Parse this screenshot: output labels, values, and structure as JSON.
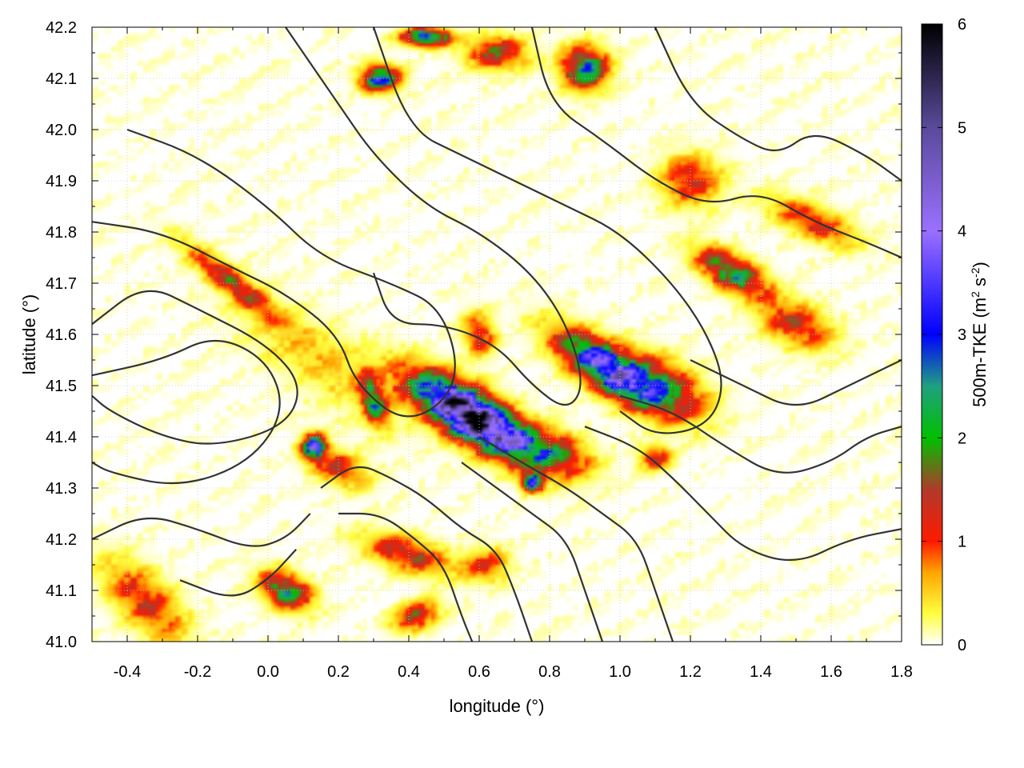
{
  "chart_data": {
    "type": "heatmap",
    "title": "",
    "xlabel": "longitude (°)",
    "ylabel": "latitude (°)",
    "xlim": [
      -0.5,
      1.8
    ],
    "ylim": [
      41.0,
      42.2
    ],
    "xticks": [
      -0.4,
      -0.2,
      0.0,
      0.2,
      0.4,
      0.6,
      0.8,
      1.0,
      1.2,
      1.4,
      1.6,
      1.8
    ],
    "xtick_labels": [
      "-0.4",
      "-0.2",
      "0.0",
      "0.2",
      "0.4",
      "0.6",
      "0.8",
      "1.0",
      "1.2",
      "1.4",
      "1.6",
      "1.8"
    ],
    "yticks": [
      41.0,
      41.1,
      41.2,
      41.3,
      41.4,
      41.5,
      41.6,
      41.7,
      41.8,
      41.9,
      42.0,
      42.1,
      42.2
    ],
    "ytick_labels": [
      "41.0",
      "41.1",
      "41.2",
      "41.3",
      "41.4",
      "41.5",
      "41.6",
      "41.7",
      "41.8",
      "41.9",
      "42.0",
      "42.1",
      "42.2"
    ],
    "grid": true,
    "colorbar": {
      "label_main": "500m-TKE (m",
      "label_sup1": "2",
      "label_mid": " s",
      "label_sup2": "-2",
      "label_end": ")",
      "range": [
        0,
        6
      ],
      "ticks": [
        0,
        1,
        2,
        3,
        4,
        5,
        6
      ],
      "tick_labels": [
        "0",
        "1",
        "2",
        "3",
        "4",
        "5",
        "6"
      ],
      "colorscale": [
        {
          "value": 0.0,
          "color": "#ffffff"
        },
        {
          "value": 0.3,
          "color": "#ffff40"
        },
        {
          "value": 0.7,
          "color": "#ffa500"
        },
        {
          "value": 1.0,
          "color": "#ff1a00"
        },
        {
          "value": 1.5,
          "color": "#b03a2a"
        },
        {
          "value": 2.0,
          "color": "#00c000"
        },
        {
          "value": 2.5,
          "color": "#20a080"
        },
        {
          "value": 3.0,
          "color": "#0000ff"
        },
        {
          "value": 4.0,
          "color": "#9a70ff"
        },
        {
          "value": 5.0,
          "color": "#5a4a9a"
        },
        {
          "value": 6.0,
          "color": "#000000"
        }
      ]
    },
    "tke_field": [
      {
        "lon": 0.58,
        "lat": 41.44,
        "peak": 6.0,
        "sx": 0.17,
        "sy": 0.055,
        "angle": -28
      },
      {
        "lon": 0.97,
        "lat": 41.53,
        "peak": 3.8,
        "sx": 0.15,
        "sy": 0.05,
        "angle": -30
      },
      {
        "lon": 1.12,
        "lat": 41.5,
        "peak": 1.8,
        "sx": 0.12,
        "sy": 0.06,
        "angle": -25
      },
      {
        "lon": 0.8,
        "lat": 41.37,
        "peak": 1.7,
        "sx": 0.11,
        "sy": 0.05,
        "angle": -15
      },
      {
        "lon": 0.75,
        "lat": 41.31,
        "peak": 4.2,
        "sx": 0.025,
        "sy": 0.02,
        "angle": 0
      },
      {
        "lon": 0.3,
        "lat": 41.47,
        "peak": 2.2,
        "sx": 0.03,
        "sy": 0.06,
        "angle": 20
      },
      {
        "lon": 0.13,
        "lat": 41.38,
        "peak": 3.2,
        "sx": 0.03,
        "sy": 0.03,
        "angle": 0
      },
      {
        "lon": 0.2,
        "lat": 41.34,
        "peak": 1.2,
        "sx": 0.08,
        "sy": 0.04,
        "angle": -20
      },
      {
        "lon": 1.32,
        "lat": 41.72,
        "peak": 2.3,
        "sx": 0.1,
        "sy": 0.04,
        "angle": -25
      },
      {
        "lon": 1.5,
        "lat": 41.62,
        "peak": 1.3,
        "sx": 0.1,
        "sy": 0.05,
        "angle": -20
      },
      {
        "lon": -0.1,
        "lat": 41.7,
        "peak": 1.5,
        "sx": 0.15,
        "sy": 0.03,
        "angle": -35
      },
      {
        "lon": 0.05,
        "lat": 41.1,
        "peak": 2.2,
        "sx": 0.07,
        "sy": 0.04,
        "angle": -20
      },
      {
        "lon": -0.35,
        "lat": 41.08,
        "peak": 1.2,
        "sx": 0.13,
        "sy": 0.06,
        "angle": -40
      },
      {
        "lon": 0.4,
        "lat": 41.17,
        "peak": 1.4,
        "sx": 0.12,
        "sy": 0.04,
        "angle": -15
      },
      {
        "lon": 0.42,
        "lat": 41.05,
        "peak": 1.6,
        "sx": 0.06,
        "sy": 0.03,
        "angle": 20
      },
      {
        "lon": 0.32,
        "lat": 42.1,
        "peak": 3.0,
        "sx": 0.05,
        "sy": 0.03,
        "angle": 0
      },
      {
        "lon": 0.45,
        "lat": 42.18,
        "peak": 3.5,
        "sx": 0.06,
        "sy": 0.02,
        "angle": 0
      },
      {
        "lon": 0.65,
        "lat": 42.15,
        "peak": 1.5,
        "sx": 0.08,
        "sy": 0.04,
        "angle": 0
      },
      {
        "lon": 0.9,
        "lat": 42.12,
        "peak": 2.5,
        "sx": 0.06,
        "sy": 0.05,
        "angle": 0
      },
      {
        "lon": 1.2,
        "lat": 41.9,
        "peak": 1.2,
        "sx": 0.08,
        "sy": 0.06,
        "angle": 0
      },
      {
        "lon": 1.55,
        "lat": 41.82,
        "peak": 1.2,
        "sx": 0.12,
        "sy": 0.04,
        "angle": -20
      },
      {
        "lon": 0.6,
        "lat": 41.6,
        "peak": 1.3,
        "sx": 0.04,
        "sy": 0.05,
        "angle": 20
      },
      {
        "lon": 0.15,
        "lat": 41.55,
        "peak": 0.5,
        "sx": 0.25,
        "sy": 0.08,
        "angle": -30
      },
      {
        "lon": 0.62,
        "lat": 41.15,
        "peak": 1.0,
        "sx": 0.06,
        "sy": 0.04,
        "angle": 0
      },
      {
        "lon": 1.1,
        "lat": 41.36,
        "peak": 1.3,
        "sx": 0.04,
        "sy": 0.03,
        "angle": 0
      }
    ],
    "contour_lines": [
      [
        [
          -0.5,
          41.62
        ],
        [
          -0.35,
          41.7
        ],
        [
          -0.2,
          41.65
        ],
        [
          0.0,
          41.58
        ],
        [
          0.1,
          41.5
        ],
        [
          0.05,
          41.42
        ],
        [
          -0.15,
          41.38
        ],
        [
          -0.3,
          41.4
        ],
        [
          -0.45,
          41.45
        ],
        [
          -0.5,
          41.48
        ]
      ],
      [
        [
          -0.5,
          41.52
        ],
        [
          -0.3,
          41.55
        ],
        [
          -0.15,
          41.6
        ],
        [
          0.0,
          41.55
        ],
        [
          0.05,
          41.45
        ],
        [
          -0.05,
          41.35
        ],
        [
          -0.25,
          41.3
        ],
        [
          -0.45,
          41.33
        ],
        [
          -0.5,
          41.35
        ]
      ],
      [
        [
          -0.4,
          42.0
        ],
        [
          -0.2,
          41.95
        ],
        [
          0.0,
          41.85
        ],
        [
          0.15,
          41.75
        ],
        [
          0.35,
          41.7
        ],
        [
          0.5,
          41.65
        ],
        [
          0.55,
          41.5
        ],
        [
          0.4,
          41.42
        ],
        [
          0.25,
          41.5
        ],
        [
          0.2,
          41.6
        ],
        [
          0.05,
          41.68
        ],
        [
          -0.1,
          41.73
        ],
        [
          -0.3,
          41.8
        ],
        [
          -0.5,
          41.82
        ]
      ],
      [
        [
          0.05,
          42.2
        ],
        [
          0.2,
          42.05
        ],
        [
          0.3,
          41.95
        ],
        [
          0.45,
          41.85
        ],
        [
          0.6,
          41.8
        ],
        [
          0.75,
          41.72
        ],
        [
          0.85,
          41.62
        ],
        [
          0.9,
          41.5
        ],
        [
          0.85,
          41.45
        ],
        [
          0.75,
          41.5
        ],
        [
          0.65,
          41.58
        ],
        [
          0.5,
          41.62
        ],
        [
          0.35,
          41.62
        ],
        [
          0.3,
          41.72
        ]
      ],
      [
        [
          0.3,
          42.2
        ],
        [
          0.4,
          42.0
        ],
        [
          0.55,
          41.95
        ],
        [
          0.7,
          41.9
        ],
        [
          0.85,
          41.85
        ],
        [
          1.0,
          41.8
        ],
        [
          1.15,
          41.7
        ],
        [
          1.25,
          41.6
        ],
        [
          1.3,
          41.5
        ],
        [
          1.25,
          41.42
        ],
        [
          1.1,
          41.4
        ],
        [
          1.0,
          41.45
        ]
      ],
      [
        [
          0.75,
          42.2
        ],
        [
          0.8,
          42.05
        ],
        [
          0.95,
          41.98
        ],
        [
          1.1,
          41.9
        ],
        [
          1.25,
          41.85
        ],
        [
          1.4,
          41.88
        ],
        [
          1.55,
          41.82
        ],
        [
          1.7,
          41.78
        ],
        [
          1.8,
          41.75
        ]
      ],
      [
        [
          1.1,
          42.2
        ],
        [
          1.2,
          42.05
        ],
        [
          1.35,
          41.98
        ],
        [
          1.45,
          41.95
        ],
        [
          1.55,
          42.0
        ],
        [
          1.7,
          41.95
        ],
        [
          1.8,
          41.9
        ]
      ],
      [
        [
          0.15,
          41.3
        ],
        [
          0.25,
          41.35
        ],
        [
          0.35,
          41.32
        ],
        [
          0.45,
          41.28
        ],
        [
          0.55,
          41.22
        ],
        [
          0.65,
          41.18
        ],
        [
          0.7,
          41.1
        ],
        [
          0.75,
          41.0
        ]
      ],
      [
        [
          0.2,
          41.25
        ],
        [
          0.32,
          41.25
        ],
        [
          0.42,
          41.2
        ],
        [
          0.5,
          41.15
        ],
        [
          0.55,
          41.05
        ],
        [
          0.58,
          41.0
        ]
      ],
      [
        [
          0.55,
          41.35
        ],
        [
          0.65,
          41.3
        ],
        [
          0.75,
          41.25
        ],
        [
          0.85,
          41.2
        ],
        [
          0.9,
          41.1
        ],
        [
          0.95,
          41.0
        ]
      ],
      [
        [
          0.6,
          41.4
        ],
        [
          0.72,
          41.35
        ],
        [
          0.85,
          41.3
        ],
        [
          0.95,
          41.25
        ],
        [
          1.05,
          41.2
        ],
        [
          1.1,
          41.1
        ],
        [
          1.15,
          41.0
        ]
      ],
      [
        [
          0.9,
          41.42
        ],
        [
          1.05,
          41.38
        ],
        [
          1.15,
          41.32
        ],
        [
          1.25,
          41.25
        ],
        [
          1.35,
          41.18
        ],
        [
          1.5,
          41.15
        ],
        [
          1.65,
          41.2
        ],
        [
          1.8,
          41.22
        ]
      ],
      [
        [
          1.0,
          41.48
        ],
        [
          1.15,
          41.45
        ],
        [
          1.3,
          41.38
        ],
        [
          1.45,
          41.32
        ],
        [
          1.6,
          41.35
        ],
        [
          1.7,
          41.4
        ],
        [
          1.8,
          41.42
        ]
      ],
      [
        [
          1.2,
          41.55
        ],
        [
          1.35,
          41.5
        ],
        [
          1.5,
          41.45
        ],
        [
          1.65,
          41.5
        ],
        [
          1.8,
          41.55
        ]
      ],
      [
        [
          -0.5,
          41.2
        ],
        [
          -0.35,
          41.25
        ],
        [
          -0.2,
          41.22
        ],
        [
          -0.05,
          41.18
        ],
        [
          0.05,
          41.2
        ],
        [
          0.12,
          41.25
        ]
      ],
      [
        [
          -0.25,
          41.12
        ],
        [
          -0.1,
          41.08
        ],
        [
          0.0,
          41.12
        ],
        [
          0.08,
          41.18
        ]
      ]
    ]
  }
}
